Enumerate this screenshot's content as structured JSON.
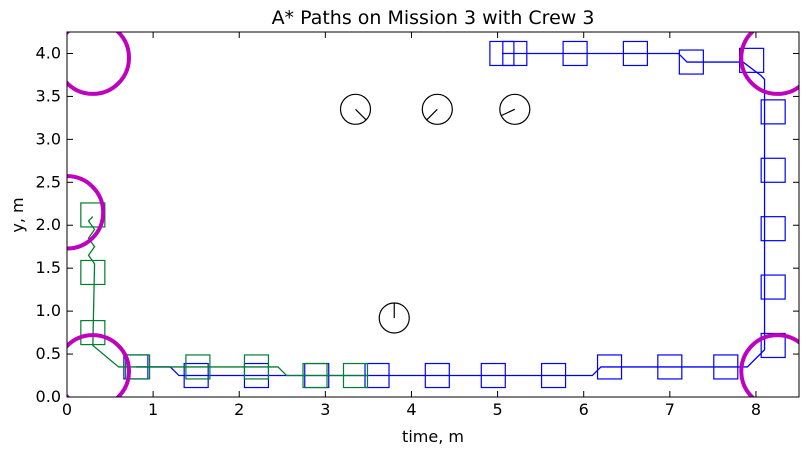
{
  "chart_data": {
    "type": "line",
    "title": "A* Paths on Mission 3 with Crew 3",
    "xlabel": "time, m",
    "ylabel": "y, m",
    "xlim": [
      0,
      8.5
    ],
    "ylim": [
      0,
      4.25
    ],
    "xticks": [
      0,
      1,
      2,
      3,
      4,
      5,
      6,
      7,
      8
    ],
    "yticks": [
      0.0,
      0.5,
      1.0,
      1.5,
      2.0,
      2.5,
      3.0,
      3.5,
      4.0
    ],
    "grid": false,
    "colors": {
      "blue": "#0000ff",
      "green": "#007f2f",
      "magenta": "#bf00bf",
      "black": "#000000"
    },
    "series": [
      {
        "color": "#0000ff",
        "path": [
          [
            0.8,
            0.35
          ],
          [
            1.2,
            0.35
          ],
          [
            1.3,
            0.25
          ],
          [
            6.1,
            0.25
          ],
          [
            6.2,
            0.35
          ],
          [
            7.9,
            0.35
          ],
          [
            8.1,
            0.55
          ],
          [
            8.1,
            3.7
          ],
          [
            8.05,
            3.75
          ],
          [
            7.85,
            3.9
          ],
          [
            7.2,
            3.9
          ],
          [
            7.1,
            4.0
          ],
          [
            5.05,
            4.0
          ]
        ],
        "boxes": [
          [
            0.8,
            0.35
          ],
          [
            1.5,
            0.25
          ],
          [
            2.2,
            0.25
          ],
          [
            2.9,
            0.25
          ],
          [
            3.6,
            0.25
          ],
          [
            4.3,
            0.25
          ],
          [
            4.95,
            0.25
          ],
          [
            5.65,
            0.25
          ],
          [
            6.3,
            0.35
          ],
          [
            7.0,
            0.35
          ],
          [
            7.65,
            0.35
          ],
          [
            8.2,
            0.6
          ],
          [
            8.2,
            1.28
          ],
          [
            8.2,
            1.96
          ],
          [
            8.2,
            2.64
          ],
          [
            8.2,
            3.32
          ],
          [
            7.95,
            3.92
          ],
          [
            7.25,
            3.9
          ],
          [
            6.6,
            4.0
          ],
          [
            5.9,
            4.0
          ],
          [
            5.2,
            4.0
          ],
          [
            5.05,
            4.0
          ]
        ]
      },
      {
        "color": "#007f2f",
        "path": [
          [
            0.3,
            2.1
          ],
          [
            0.25,
            2.05
          ],
          [
            0.32,
            1.95
          ],
          [
            0.25,
            1.85
          ],
          [
            0.32,
            1.75
          ],
          [
            0.25,
            1.65
          ],
          [
            0.32,
            1.55
          ],
          [
            0.3,
            0.6
          ],
          [
            0.6,
            0.35
          ],
          [
            2.45,
            0.35
          ],
          [
            2.55,
            0.25
          ],
          [
            3.5,
            0.25
          ]
        ],
        "boxes": [
          [
            0.3,
            2.12
          ],
          [
            0.3,
            1.45
          ],
          [
            0.3,
            0.75
          ],
          [
            0.82,
            0.35
          ],
          [
            1.52,
            0.35
          ],
          [
            2.2,
            0.35
          ],
          [
            2.88,
            0.25
          ],
          [
            3.35,
            0.25
          ]
        ]
      }
    ],
    "obstacles": [
      {
        "x": 0.3,
        "y": 3.95
      },
      {
        "x": 0.0,
        "y": 2.15
      },
      {
        "x": 0.3,
        "y": 0.3
      },
      {
        "x": 8.25,
        "y": 3.95
      },
      {
        "x": 8.25,
        "y": 0.3
      }
    ],
    "gauges": [
      {
        "x": 3.35,
        "y": 3.35,
        "angle_deg": -45
      },
      {
        "x": 4.3,
        "y": 3.35,
        "angle_deg": -135
      },
      {
        "x": 5.2,
        "y": 3.35,
        "angle_deg": -155
      },
      {
        "x": 3.8,
        "y": 0.92,
        "angle_deg": 90
      }
    ]
  }
}
